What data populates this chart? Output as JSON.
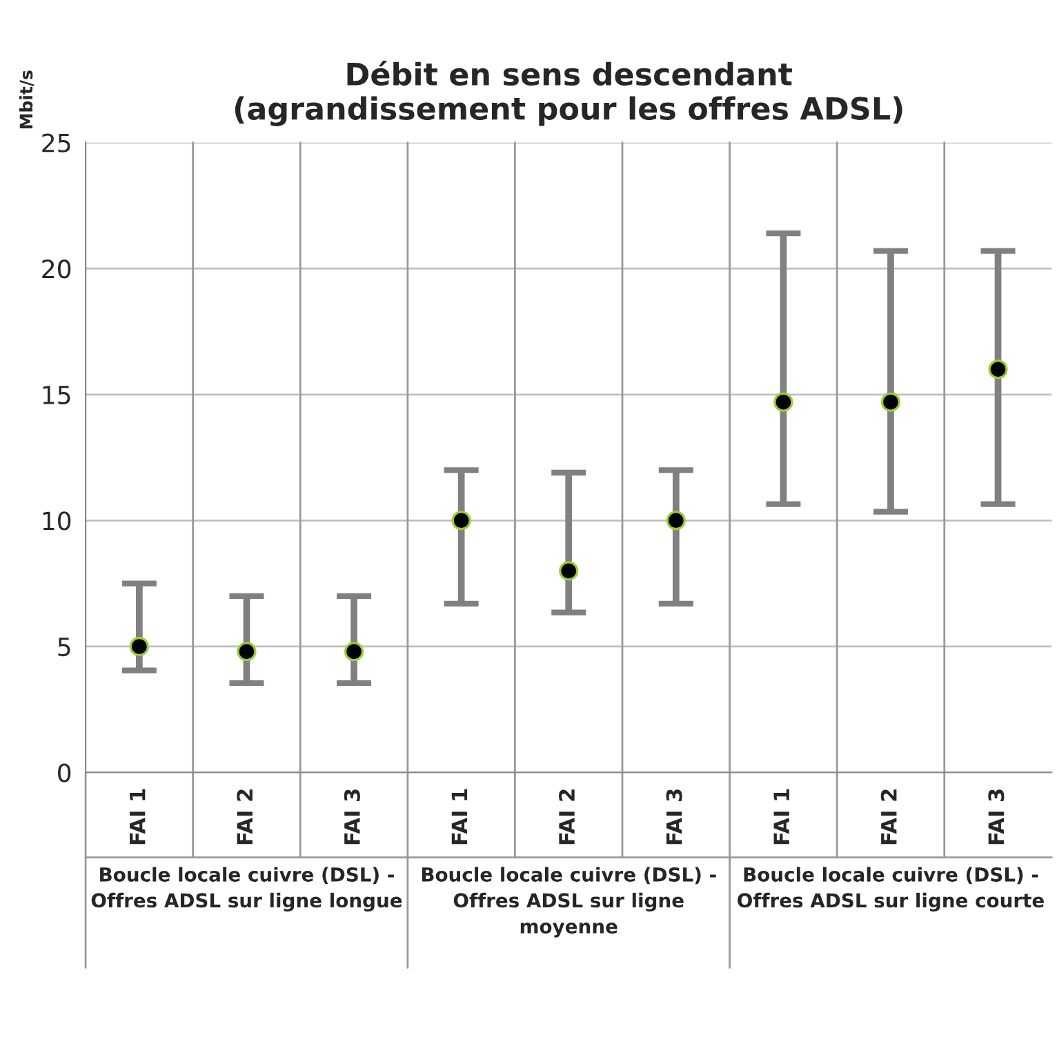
{
  "chart_data": {
    "type": "scatter",
    "title": "Débit en sens descendant\n(agrandissement pour les offres ADSL)",
    "ylabel": "Mbit/s",
    "categories": [
      "FAI 1",
      "FAI 2",
      "FAI 3",
      "FAI 1",
      "FAI 2",
      "FAI 3",
      "FAI 1",
      "FAI 2",
      "FAI 3"
    ],
    "series": [
      {
        "color": "#000000",
        "values": [
          5,
          4.8,
          4.8,
          10,
          8,
          10,
          14.7,
          14.7,
          16
        ],
        "errors": [
          [
            4.05,
            7.5
          ],
          [
            3.55,
            7.0
          ],
          [
            3.55,
            7.0
          ],
          [
            6.7,
            12
          ],
          [
            6.35,
            11.9
          ],
          [
            6.7,
            12
          ],
          [
            10.65,
            21.4
          ],
          [
            10.35,
            20.7
          ],
          [
            10.65,
            20.7
          ]
        ]
      }
    ],
    "annotations": [
      "Boucle locale cuivre (DSL) -\nOffres ADSL sur ligne longue",
      "Boucle locale cuivre (DSL) -\nOffres ADSL sur ligne\nmoyenne",
      "Boucle locale cuivre (DSL) -\nOffres ADSL sur ligne courte"
    ],
    "ylim": [
      0,
      25
    ],
    "yticks": [
      0,
      5,
      10,
      15,
      20,
      25
    ],
    "grid": "y",
    "marker": "circle"
  }
}
